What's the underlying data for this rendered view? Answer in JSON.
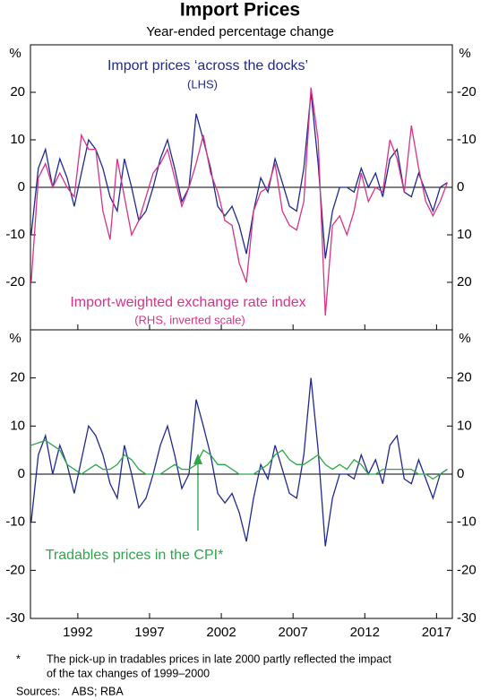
{
  "title": "Import Prices",
  "subtitle": "Year-ended percentage change",
  "footnote_mark": "*",
  "footnote": [
    "The pick-up in tradables prices in late 2000 partly reflected the impact",
    "of the tax changes of 1999–2000"
  ],
  "sources_label": "Sources:",
  "sources": "ABS; RBA",
  "chart_data": [
    {
      "type": "line",
      "y_unit": "%",
      "y2_unit": "%",
      "xlim": [
        1988.7,
        2018.1
      ],
      "xticks": [
        1992,
        1997,
        2002,
        2007,
        2012,
        2017
      ],
      "show_xlabels": false,
      "ylim": [
        -30,
        30
      ],
      "yticks": [
        -20,
        -10,
        0,
        10,
        20
      ],
      "y2lim": [
        30,
        -30
      ],
      "y2ticks": [
        -20,
        -10,
        0,
        10,
        20
      ],
      "x": [
        1988.75,
        1989.25,
        1989.75,
        1990.25,
        1990.75,
        1991.25,
        1991.75,
        1992.25,
        1992.75,
        1993.25,
        1993.75,
        1994.25,
        1994.75,
        1995.25,
        1995.75,
        1996.25,
        1996.75,
        1997.25,
        1997.75,
        1998.25,
        1998.75,
        1999.25,
        1999.75,
        2000.25,
        2000.75,
        2001.25,
        2001.75,
        2002.25,
        2002.75,
        2003.25,
        2003.75,
        2004.25,
        2004.75,
        2005.25,
        2005.75,
        2006.25,
        2006.75,
        2007.25,
        2007.75,
        2008.25,
        2008.75,
        2009.25,
        2009.75,
        2010.25,
        2010.75,
        2011.25,
        2011.75,
        2012.25,
        2012.75,
        2013.25,
        2013.75,
        2014.25,
        2014.75,
        2015.25,
        2015.75,
        2016.25,
        2016.75,
        2017.25,
        2017.75
      ],
      "series": [
        {
          "name": "Import prices ‘across the docks’",
          "note": "(LHS)",
          "color": "#1f2a8c",
          "values": [
            -10,
            4,
            8,
            0,
            6,
            2,
            -4,
            3,
            10,
            8,
            4,
            -2,
            -5,
            6,
            0,
            -7,
            -5,
            0,
            6,
            10,
            4,
            -3,
            0,
            15.5,
            10,
            4,
            -4,
            -6,
            -4,
            -8,
            -14,
            -5,
            2,
            -1,
            6,
            1,
            -4,
            -5,
            4,
            20,
            5,
            -15,
            -5,
            0,
            0,
            -1,
            4,
            0,
            3,
            -2,
            6,
            8,
            -1,
            -2,
            3,
            -1,
            -5,
            0,
            1
          ]
        },
        {
          "name": "Import-weighted exchange rate index",
          "note": "(RHS, inverted scale)",
          "color": "#d6338a",
          "axis": "y2",
          "values": [
            20,
            -2,
            -5,
            0,
            -3,
            0,
            2,
            -11,
            -8,
            -8,
            5,
            11,
            -6,
            2,
            10,
            7,
            2,
            -3,
            -5,
            -8,
            -2,
            4,
            0,
            -5,
            -11,
            -3,
            1,
            7,
            8,
            16,
            20,
            5,
            1,
            0,
            -5,
            5,
            8,
            9,
            3,
            -21,
            -10,
            27,
            8,
            6,
            10,
            5,
            -3,
            3,
            0,
            1,
            -10,
            -6,
            1,
            -13,
            -4,
            3,
            6,
            3,
            -1
          ]
        }
      ]
    },
    {
      "type": "line",
      "y_unit": "%",
      "y2_unit": "%",
      "xlim": [
        1988.7,
        2018.1
      ],
      "xticks": [
        1992,
        1997,
        2002,
        2007,
        2012,
        2017
      ],
      "show_xlabels": true,
      "ylim": [
        -30,
        30
      ],
      "yticks": [
        -30,
        -20,
        -10,
        0,
        10,
        20
      ],
      "y2lim": [
        -30,
        30
      ],
      "y2ticks": [
        -30,
        -20,
        -10,
        0,
        10,
        20
      ],
      "x": [
        1988.75,
        1989.25,
        1989.75,
        1990.25,
        1990.75,
        1991.25,
        1991.75,
        1992.25,
        1992.75,
        1993.25,
        1993.75,
        1994.25,
        1994.75,
        1995.25,
        1995.75,
        1996.25,
        1996.75,
        1997.25,
        1997.75,
        1998.25,
        1998.75,
        1999.25,
        1999.75,
        2000.25,
        2000.75,
        2001.25,
        2001.75,
        2002.25,
        2002.75,
        2003.25,
        2003.75,
        2004.25,
        2004.75,
        2005.25,
        2005.75,
        2006.25,
        2006.75,
        2007.25,
        2007.75,
        2008.25,
        2008.75,
        2009.25,
        2009.75,
        2010.25,
        2010.75,
        2011.25,
        2011.75,
        2012.25,
        2012.75,
        2013.25,
        2013.75,
        2014.25,
        2014.75,
        2015.25,
        2015.75,
        2016.25,
        2016.75,
        2017.25,
        2017.75
      ],
      "series": [
        {
          "color": "#1f2a8c",
          "values": [
            -10,
            4,
            8,
            0,
            6,
            2,
            -4,
            3,
            10,
            8,
            4,
            -2,
            -5,
            6,
            0,
            -7,
            -5,
            0,
            6,
            10,
            4,
            -3,
            0,
            15.5,
            10,
            4,
            -4,
            -6,
            -4,
            -8,
            -14,
            -5,
            2,
            -1,
            6,
            1,
            -4,
            -5,
            4,
            20,
            5,
            -15,
            -5,
            0,
            0,
            -1,
            4,
            0,
            3,
            -2,
            6,
            8,
            -1,
            -2,
            3,
            -1,
            -5,
            0,
            1
          ]
        },
        {
          "name": "Tradables prices in the CPI*",
          "color": "#2ca84a",
          "values": [
            6,
            6.5,
            7,
            6,
            5,
            2,
            1,
            0,
            1,
            2,
            1,
            1,
            2,
            4,
            3,
            1,
            0,
            0,
            0,
            1,
            2,
            1,
            1,
            2,
            5,
            4,
            2,
            2,
            1,
            0,
            0,
            0,
            1,
            2,
            4,
            5,
            3,
            2,
            2,
            3,
            4,
            2,
            1,
            2,
            1,
            3,
            2,
            0,
            0,
            1,
            1,
            1,
            1,
            1,
            0,
            0,
            -1,
            0,
            1
          ]
        }
      ]
    }
  ]
}
